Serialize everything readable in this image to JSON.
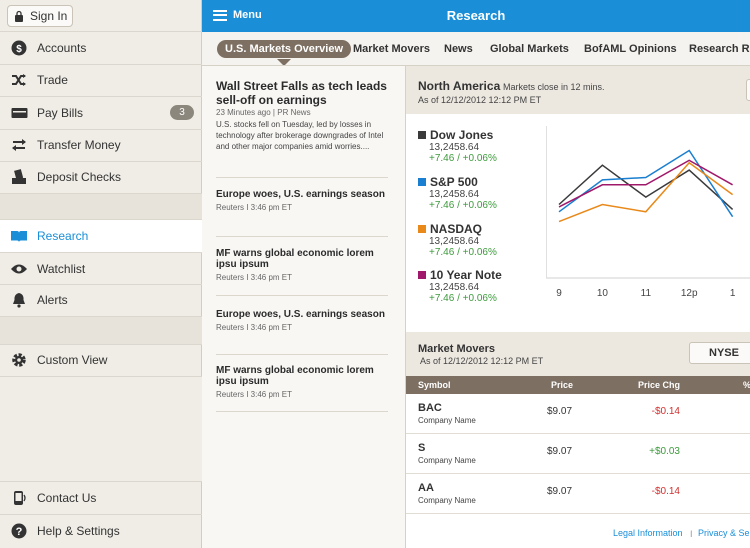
{
  "sidebar": {
    "sign_in": "Sign In",
    "items": [
      {
        "label": "Accounts",
        "icon": "dollar-icon"
      },
      {
        "label": "Trade",
        "icon": "shuffle-icon"
      },
      {
        "label": "Pay Bills",
        "icon": "bill-icon",
        "badge": "3"
      },
      {
        "label": "Transfer Money",
        "icon": "transfer-icon"
      },
      {
        "label": "Deposit Checks",
        "icon": "deposit-icon"
      },
      {
        "label": "Research",
        "icon": "book-icon",
        "active": true
      },
      {
        "label": "Watchlist",
        "icon": "eye-icon"
      },
      {
        "label": "Alerts",
        "icon": "bell-icon"
      },
      {
        "label": "Custom View",
        "icon": "gear-icon"
      },
      {
        "label": "Contact Us",
        "icon": "phone-icon"
      },
      {
        "label": "Help & Settings",
        "icon": "help-icon"
      }
    ]
  },
  "topbar": {
    "menu_label": "Menu",
    "title": "Research"
  },
  "tabs": [
    {
      "label": "U.S. Markets Overview",
      "active": true
    },
    {
      "label": "Market Movers"
    },
    {
      "label": "News"
    },
    {
      "label": "Global Markets"
    },
    {
      "label": "BofAML Opinions"
    },
    {
      "label": "Research Re"
    }
  ],
  "news": [
    {
      "title": "Wall Street Falls as tech leads sell-off on earnings",
      "meta": "23 Minutes ago  |  PR News",
      "body": "U.S. stocks fell on Tuesday, led by losses in technology after brokerage downgrades of Intel and other major companies amid worries...."
    },
    {
      "title": "Europe woes, U.S. earnings season",
      "meta": "Reuters I 3:46 pm ET"
    },
    {
      "title": "MF warns global economic lorem ipsu ipsum",
      "meta": "Reuters I 3:46 pm ET"
    },
    {
      "title": "Europe woes, U.S. earnings season",
      "meta": "Reuters I 3:46 pm ET"
    },
    {
      "title": "MF warns global economic lorem ipsu ipsum",
      "meta": "Reuters I 3:46 pm ET"
    }
  ],
  "north_america": {
    "title": "North America",
    "close_note": "Markets close in 12 mins.",
    "as_of": "As of 12/12/2012 12:12 PM ET",
    "indices": [
      {
        "name": "Dow Jones",
        "value": "13,2458.64",
        "change": "+7.46 / +0.06%",
        "color": "#3a3a3a"
      },
      {
        "name": "S&P 500",
        "value": "13,2458.64",
        "change": "+7.46 / +0.06%",
        "color": "#1a7fd0"
      },
      {
        "name": "NASDAQ",
        "value": "13,2458.64",
        "change": "+7.46 / +0.06%",
        "color": "#e8891a"
      },
      {
        "name": "10  Year Note",
        "value": "13,2458.64",
        "change": "+7.46 / +0.06%",
        "color": "#a0186a"
      }
    ]
  },
  "chart_data": {
    "type": "line",
    "categories": [
      "9",
      "10",
      "11",
      "12p",
      "1"
    ],
    "x_positions": [
      9,
      10,
      11,
      12,
      13
    ],
    "series": [
      {
        "name": "Dow Jones",
        "color": "#3a3a3a",
        "points": [
          [
            9,
            4.0
          ],
          [
            10,
            5.6
          ],
          [
            11,
            4.3
          ],
          [
            12,
            5.4
          ],
          [
            13,
            3.8
          ]
        ]
      },
      {
        "name": "S&P 500",
        "color": "#1a7fd0",
        "points": [
          [
            9,
            3.7
          ],
          [
            10,
            5.0
          ],
          [
            11,
            5.1
          ],
          [
            12,
            6.2
          ],
          [
            13,
            3.5
          ]
        ]
      },
      {
        "name": "NASDAQ",
        "color": "#e8891a",
        "points": [
          [
            9,
            3.3
          ],
          [
            10,
            4.0
          ],
          [
            11,
            3.7
          ],
          [
            12,
            5.7
          ],
          [
            13,
            4.4
          ]
        ]
      },
      {
        "name": "10  Year Note",
        "color": "#a0186a",
        "points": [
          [
            9,
            3.9
          ],
          [
            10,
            4.8
          ],
          [
            11,
            4.8
          ],
          [
            12,
            5.8
          ],
          [
            13,
            4.8
          ]
        ]
      }
    ],
    "xlim": [
      8.7,
      13.4
    ],
    "ylim": [
      1,
      7.2
    ]
  },
  "market_movers": {
    "title": "Market Movers",
    "as_of": "As of 12/12/2012 12:12 PM ET",
    "exchange": "NYSE",
    "columns": [
      "Symbol",
      "Price",
      "Price Chg",
      "%"
    ],
    "rows": [
      {
        "symbol": "BAC",
        "company": "Company Name",
        "price": "$9.07",
        "change": "-$0.14",
        "direction": "down"
      },
      {
        "symbol": "S",
        "company": "Company Name",
        "price": "$9.07",
        "change": "+$0.03",
        "direction": "up"
      },
      {
        "symbol": "AA",
        "company": "Company Name",
        "price": "$9.07",
        "change": "-$0.14",
        "direction": "down"
      }
    ]
  },
  "footer": {
    "legal": "Legal Information",
    "separator": "I",
    "privacy": "Privacy & Se"
  }
}
